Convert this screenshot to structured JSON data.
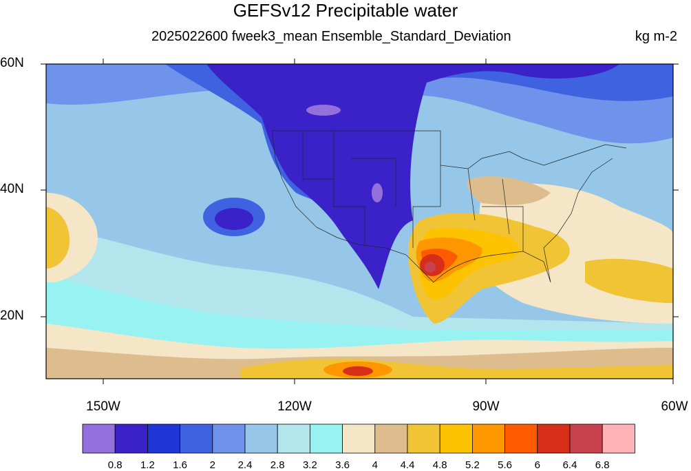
{
  "title": "GEFSv12 Precipitable water",
  "subtitle": "2025022600 fweek3_mean Ensemble_Standard_Deviation",
  "units": "kg m-2",
  "map": {
    "lat_labels": [
      "60N",
      "40N",
      "20N"
    ],
    "lon_labels": [
      "150W",
      "120W",
      "90W",
      "60W"
    ]
  },
  "colorbar": {
    "colors": [
      "#9370db",
      "#3a22c8",
      "#1f35d6",
      "#3e62e0",
      "#6f92ea",
      "#96c7e8",
      "#b2e6ec",
      "#98f2f2",
      "#f4e6c6",
      "#ddbd8e",
      "#f0c434",
      "#fdc300",
      "#ff9800",
      "#ff5a00",
      "#d62e18",
      "#c8414e",
      "#ffb3b6"
    ],
    "labels": [
      "0.8",
      "1.2",
      "1.6",
      "2",
      "2.4",
      "2.8",
      "3.2",
      "3.6",
      "4",
      "4.4",
      "4.8",
      "5.2",
      "5.6",
      "6",
      "6.4",
      "6.8"
    ]
  }
}
